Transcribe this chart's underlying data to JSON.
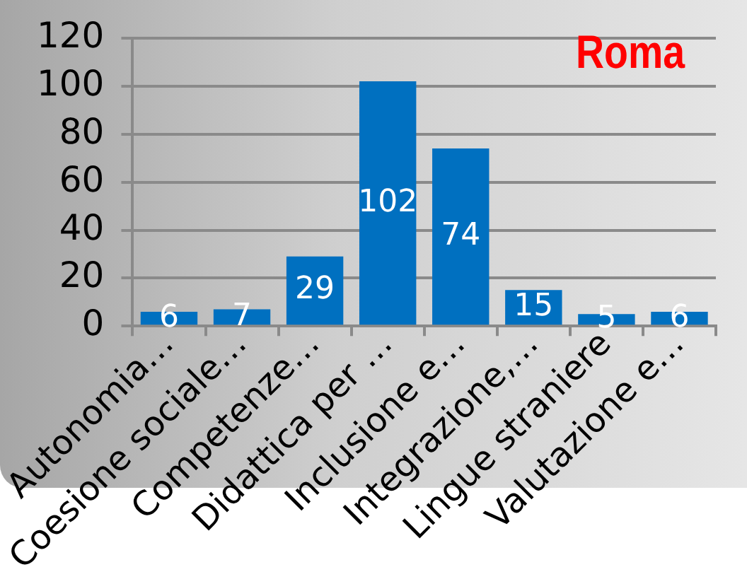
{
  "chart_data": {
    "type": "bar",
    "title": "Roma",
    "categories": [
      "Autonomia…",
      "Coesione sociale…",
      "Competenze…",
      "Didattica per …",
      "Inclusione e…",
      "Integrazione,…",
      "Lingue straniere",
      "Valutazione e…"
    ],
    "values": [
      6,
      7,
      29,
      102,
      74,
      15,
      5,
      6
    ],
    "color": "#0070c0",
    "ylim": [
      0,
      120
    ],
    "yticks": [
      0,
      20,
      40,
      60,
      80,
      100,
      120
    ],
    "grid": "y",
    "legend": false,
    "data_labels": true
  }
}
